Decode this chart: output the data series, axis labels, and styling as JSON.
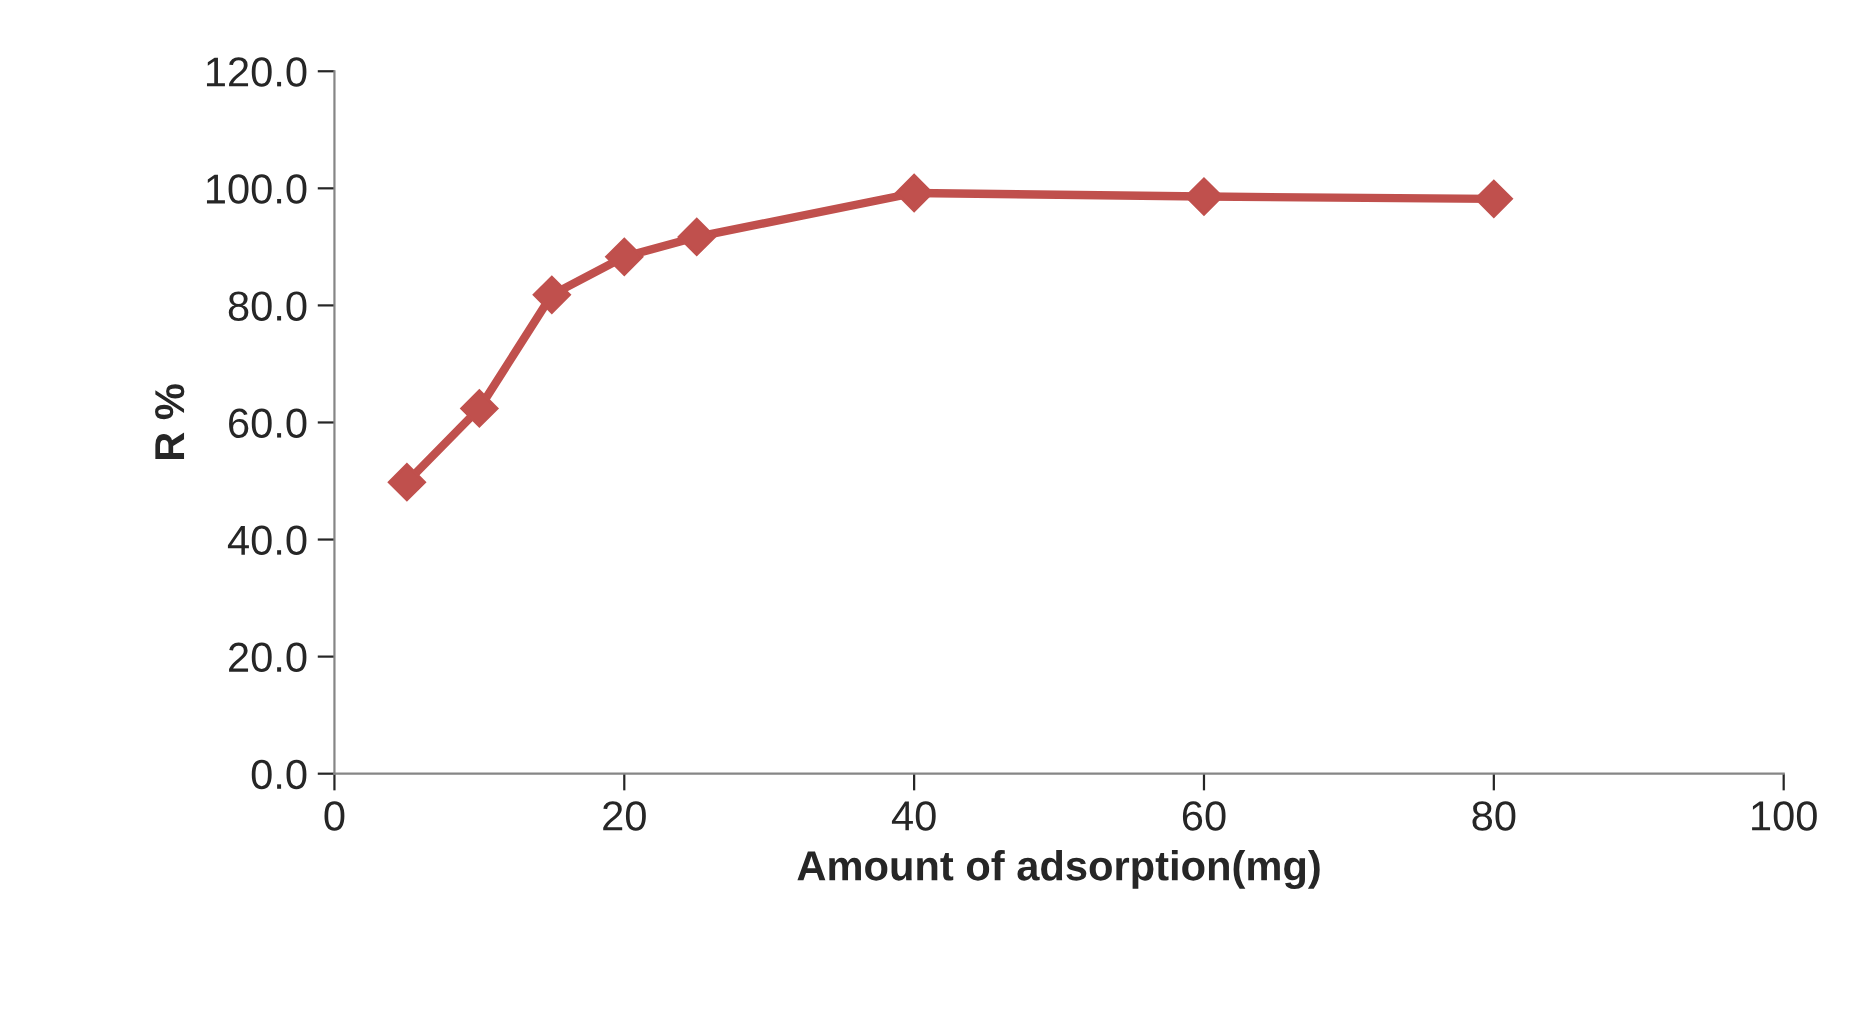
{
  "chart_data": {
    "type": "line",
    "xlabel": "Amount of adsorption(mg)",
    "ylabel": "R %",
    "x": [
      5,
      10,
      15,
      20,
      25,
      40,
      60,
      80
    ],
    "series": [
      {
        "color": "#c0504d",
        "values": [
          49.8,
          62.4,
          81.8,
          88.3,
          91.7,
          99.2,
          98.6,
          98.2
        ]
      }
    ],
    "xlim": [
      0,
      100
    ],
    "xticks": [
      0,
      20,
      40,
      60,
      80,
      100
    ],
    "ylim": [
      0,
      120
    ],
    "yticks": [
      {
        "value": 0,
        "label": "0.0"
      },
      {
        "value": 20,
        "label": "20.0"
      },
      {
        "value": 40,
        "label": "40.0"
      },
      {
        "value": 60,
        "label": "60.0"
      },
      {
        "value": 80,
        "label": "80.0"
      },
      {
        "value": 100,
        "label": "100.0"
      },
      {
        "value": 120,
        "label": "120.0"
      }
    ],
    "marker": "diamond",
    "line_style": "solid",
    "grid": false
  }
}
